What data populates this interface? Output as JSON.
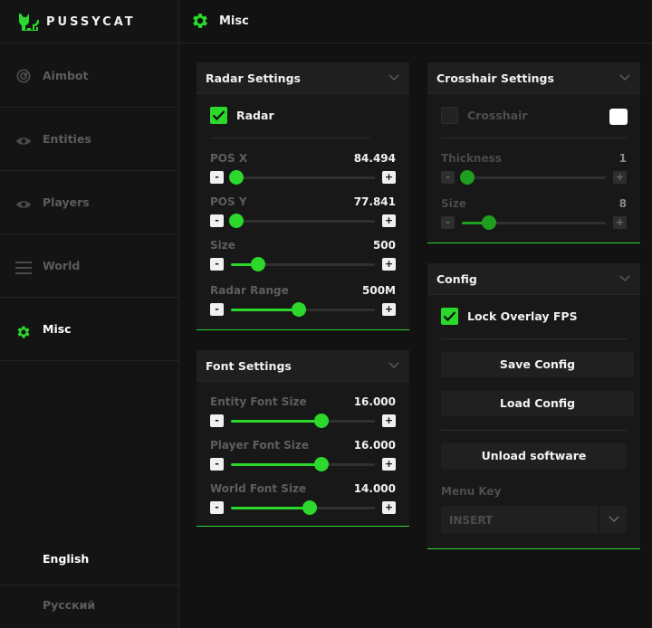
{
  "app": {
    "brand": "PUSSYCAT"
  },
  "sidebar": {
    "items": [
      {
        "label": "Aimbot",
        "icon": "radar-icon",
        "active": false
      },
      {
        "label": "Entities",
        "icon": "eye-icon",
        "active": false
      },
      {
        "label": "Players",
        "icon": "eye-icon",
        "active": false
      },
      {
        "label": "World",
        "icon": "menu-lines-icon",
        "active": false
      },
      {
        "label": "Misc",
        "icon": "gear-icon",
        "active": true
      }
    ],
    "languages": [
      {
        "label": "English",
        "active": true
      },
      {
        "label": "Русский",
        "active": false
      }
    ]
  },
  "header": {
    "title": "Misc",
    "icon": "gear-icon"
  },
  "colors": {
    "accent": "#2bd82b",
    "panel": "#181818",
    "background": "#121212"
  },
  "radar": {
    "title": "Radar Settings",
    "checkbox": {
      "label": "Radar",
      "checked": true
    },
    "sliders": [
      {
        "label": "POS X",
        "value": "84.494",
        "fraction": 0.04
      },
      {
        "label": "POS Y",
        "value": "77.841",
        "fraction": 0.04
      },
      {
        "label": "Size",
        "value": "500",
        "fraction": 0.19
      },
      {
        "label": "Radar Range",
        "value": "500M",
        "fraction": 0.47
      }
    ]
  },
  "font": {
    "title": "Font Settings",
    "sliders": [
      {
        "label": "Entity Font Size",
        "value": "16.000",
        "fraction": 0.63
      },
      {
        "label": "Player Font Size",
        "value": "16.000",
        "fraction": 0.63
      },
      {
        "label": "World Font Size",
        "value": "14.000",
        "fraction": 0.55
      }
    ]
  },
  "crosshair": {
    "title": "Crosshair Settings",
    "checkbox": {
      "label": "Crosshair",
      "checked": false
    },
    "swatch_color": "#ffffff",
    "sliders": [
      {
        "label": "Thickness",
        "value": "1",
        "fraction": 0.04
      },
      {
        "label": "Size",
        "value": "8",
        "fraction": 0.19
      }
    ]
  },
  "config": {
    "title": "Config",
    "checkbox": {
      "label": "Lock Overlay FPS",
      "checked": true
    },
    "save_label": "Save Config",
    "load_label": "Load Config",
    "unload_label": "Unload software",
    "menu_key_label": "Menu Key",
    "menu_key_value": "INSERT"
  }
}
